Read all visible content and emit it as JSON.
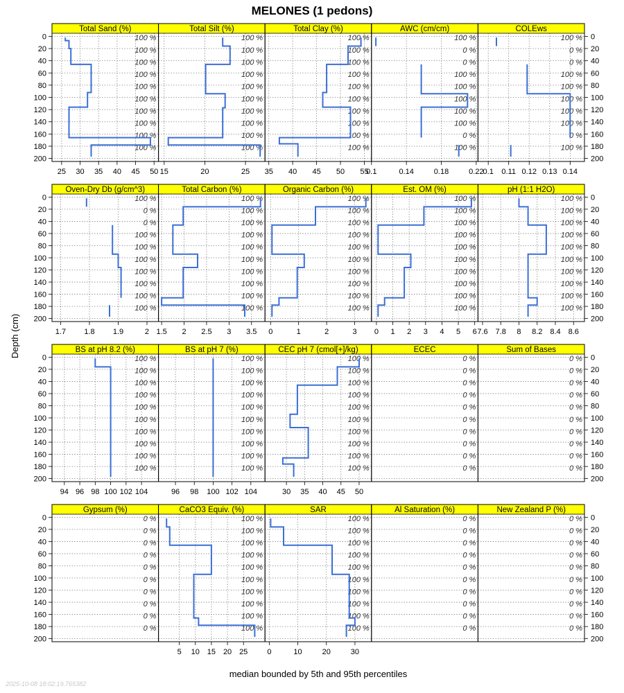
{
  "chart_data": {
    "type": "line",
    "title": "MELONES (1 pedons)",
    "xlabel": "median bounded by 5th and 95th percentiles",
    "ylabel": "Depth (cm)",
    "timestamp": "2025-10-08 18:02:19.765382",
    "y_ticks": [
      0,
      20,
      40,
      60,
      80,
      100,
      120,
      140,
      160,
      180,
      200
    ],
    "ylim": [
      205,
      -5
    ],
    "grid": true,
    "line_color": "#3b6fd6",
    "strip_color": "#ffff00",
    "panels": [
      {
        "name": "Total Sand (%)",
        "xlim": [
          22.4,
          51.2
        ],
        "x_ticks": [
          25,
          30,
          35,
          40,
          45,
          50
        ],
        "profile": [
          [
            26,
            2
          ],
          [
            26,
            7
          ],
          [
            27,
            7
          ],
          [
            27,
            20
          ],
          [
            27.5,
            20
          ],
          [
            27.5,
            46
          ],
          [
            33,
            46
          ],
          [
            33,
            92
          ],
          [
            32,
            92
          ],
          [
            32,
            116
          ],
          [
            27,
            116
          ],
          [
            27,
            166
          ],
          [
            49,
            166
          ],
          [
            49,
            178
          ],
          [
            33,
            178
          ],
          [
            33,
            197
          ]
        ],
        "pct_labels": [
          "100 %",
          "100 %",
          "100 %",
          "100 %",
          "100 %",
          "100 %",
          "100 %",
          "100 %",
          "100 %",
          "100 %"
        ]
      },
      {
        "name": "Total Silt (%)",
        "xlim": [
          14.3,
          27.4
        ],
        "x_ticks": [
          15,
          20,
          25
        ],
        "profile": [
          [
            22.2,
            2
          ],
          [
            22.2,
            16
          ],
          [
            23.1,
            16
          ],
          [
            23.1,
            46
          ],
          [
            20.1,
            46
          ],
          [
            20.1,
            94
          ],
          [
            22.5,
            94
          ],
          [
            22.5,
            117
          ],
          [
            22.2,
            117
          ],
          [
            22.2,
            166
          ],
          [
            15.5,
            166
          ],
          [
            15.5,
            178
          ],
          [
            26.8,
            178
          ],
          [
            26.8,
            197
          ]
        ],
        "pct_labels": [
          "100 %",
          "100 %",
          "100 %",
          "100 %",
          "100 %",
          "100 %",
          "100 %",
          "100 %",
          "100 %",
          "100 %"
        ]
      },
      {
        "name": "Total Clay (%)",
        "xlim": [
          34.2,
          56.5
        ],
        "x_ticks": [
          35,
          40,
          45,
          50,
          55
        ],
        "profile": [
          [
            54.3,
            2
          ],
          [
            54.3,
            16
          ],
          [
            51.6,
            16
          ],
          [
            51.6,
            46
          ],
          [
            47.1,
            46
          ],
          [
            47.1,
            92
          ],
          [
            46.3,
            92
          ],
          [
            46.3,
            116
          ],
          [
            52.1,
            116
          ],
          [
            52.1,
            166
          ],
          [
            37.2,
            166
          ],
          [
            37.2,
            176
          ],
          [
            41.1,
            176
          ],
          [
            41.1,
            197
          ]
        ],
        "pct_labels": [
          "100 %",
          "100 %",
          "100 %",
          "100 %",
          "100 %",
          "100 %",
          "100 %",
          "100 %",
          "100 %",
          "100 %"
        ]
      },
      {
        "name": "AWC (cm/cm)",
        "xlim": [
          0.1,
          0.222
        ],
        "x_ticks": [
          0.1,
          0.14,
          0.18,
          0.22
        ],
        "profile": [
          [
            0.105,
            2
          ],
          [
            0.105,
            16
          ],
          null,
          [
            0.157,
            46
          ],
          [
            0.157,
            94
          ],
          [
            0.21,
            94
          ],
          [
            0.21,
            116
          ],
          [
            0.157,
            116
          ],
          [
            0.157,
            166
          ],
          null,
          [
            0.2,
            178
          ],
          [
            0.2,
            197
          ]
        ],
        "pct_labels": [
          "100 %",
          "0 %",
          "0 %",
          "100 %",
          "100 %",
          "100 %",
          "100 %",
          "100 %",
          "0 %",
          "100 %"
        ]
      },
      {
        "name": "COLEws",
        "xlim": [
          0.095,
          0.147
        ],
        "x_ticks": [
          0.1,
          0.11,
          0.12,
          0.13,
          0.14
        ],
        "profile": [
          [
            0.104,
            2
          ],
          [
            0.104,
            16
          ],
          null,
          [
            0.119,
            46
          ],
          [
            0.119,
            94
          ],
          [
            0.14,
            94
          ],
          [
            0.14,
            166
          ],
          null,
          [
            0.111,
            178
          ],
          [
            0.111,
            197
          ]
        ],
        "pct_labels": [
          "100 %",
          "0 %",
          "0 %",
          "100 %",
          "100 %",
          "100 %",
          "100 %",
          "100 %",
          "0 %",
          "100 %"
        ]
      },
      {
        "name": "Oven-Dry Db (g/cm^3)",
        "xlim": [
          1.67,
          2.04
        ],
        "x_ticks": [
          1.7,
          1.8,
          1.9,
          2.0
        ],
        "profile": [
          [
            1.79,
            2
          ],
          [
            1.79,
            16
          ],
          null,
          [
            1.88,
            46
          ],
          [
            1.88,
            94
          ],
          [
            1.9,
            94
          ],
          [
            1.9,
            116
          ],
          [
            1.91,
            116
          ],
          [
            1.91,
            166
          ],
          null,
          [
            1.87,
            178
          ],
          [
            1.87,
            197
          ]
        ],
        "pct_labels": [
          "100 %",
          "0 %",
          "0 %",
          "100 %",
          "100 %",
          "100 %",
          "100 %",
          "100 %",
          "100 %",
          "100 %"
        ]
      },
      {
        "name": "Total Carbon (%)",
        "xlim": [
          1.43,
          3.8
        ],
        "x_ticks": [
          1.5,
          2.0,
          2.5,
          3.0,
          3.5
        ],
        "profile": [
          [
            3.7,
            2
          ],
          [
            3.7,
            16
          ],
          [
            1.98,
            16
          ],
          [
            1.98,
            46
          ],
          [
            1.75,
            46
          ],
          [
            1.75,
            94
          ],
          [
            2.3,
            94
          ],
          [
            2.3,
            116
          ],
          [
            1.98,
            116
          ],
          [
            1.98,
            166
          ],
          [
            1.5,
            166
          ],
          [
            1.5,
            178
          ],
          [
            3.35,
            178
          ],
          [
            3.35,
            197
          ]
        ],
        "pct_labels": [
          "100 %",
          "100 %",
          "100 %",
          "100 %",
          "100 %",
          "100 %",
          "100 %",
          "100 %",
          "100 %",
          "100 %"
        ]
      },
      {
        "name": "Organic Carbon (%)",
        "xlim": [
          -0.2,
          3.6
        ],
        "x_ticks": [
          0,
          1,
          2,
          3
        ],
        "profile": [
          [
            3.4,
            2
          ],
          [
            3.4,
            16
          ],
          [
            1.6,
            16
          ],
          [
            1.6,
            46
          ],
          [
            0.05,
            46
          ],
          [
            0.05,
            94
          ],
          [
            1.2,
            94
          ],
          [
            1.2,
            116
          ],
          [
            0.95,
            116
          ],
          [
            0.95,
            166
          ],
          [
            0.3,
            166
          ],
          [
            0.3,
            178
          ],
          [
            0.05,
            178
          ],
          [
            0.05,
            197
          ]
        ],
        "pct_labels": [
          "100 %",
          "100 %",
          "100 %",
          "100 %",
          "100 %",
          "100 %",
          "100 %",
          "100 %",
          "100 %",
          "100 %"
        ]
      },
      {
        "name": "Est. OM (%)",
        "xlim": [
          -0.3,
          6.2
        ],
        "x_ticks": [
          0,
          1,
          2,
          3,
          4,
          5,
          6
        ],
        "profile": [
          [
            5.8,
            2
          ],
          [
            5.8,
            16
          ],
          [
            2.9,
            16
          ],
          [
            2.9,
            46
          ],
          [
            0.1,
            46
          ],
          [
            0.1,
            94
          ],
          [
            2.1,
            94
          ],
          [
            2.1,
            116
          ],
          [
            1.7,
            116
          ],
          [
            1.7,
            166
          ],
          [
            0.5,
            166
          ],
          [
            0.5,
            178
          ],
          [
            0.1,
            178
          ],
          [
            0.1,
            197
          ]
        ],
        "pct_labels": [
          "100 %",
          "100 %",
          "100 %",
          "100 %",
          "100 %",
          "100 %",
          "100 %",
          "100 %",
          "100 %",
          "100 %"
        ]
      },
      {
        "name": "pH (1:1 H2O)",
        "xlim": [
          7.55,
          8.72
        ],
        "x_ticks": [
          7.6,
          7.8,
          8.0,
          8.2,
          8.4,
          8.6
        ],
        "profile": [
          [
            8.0,
            2
          ],
          [
            8.0,
            16
          ],
          [
            8.1,
            16
          ],
          [
            8.1,
            46
          ],
          [
            8.3,
            46
          ],
          [
            8.3,
            94
          ],
          [
            8.1,
            94
          ],
          [
            8.1,
            166
          ],
          [
            8.2,
            166
          ],
          [
            8.2,
            178
          ],
          [
            8.1,
            178
          ],
          [
            8.1,
            197
          ]
        ],
        "pct_labels": [
          "100 %",
          "100 %",
          "100 %",
          "100 %",
          "100 %",
          "100 %",
          "100 %",
          "100 %",
          "100 %",
          "100 %"
        ]
      },
      {
        "name": "BS at pH 8.2 (%)",
        "xlim": [
          92.4,
          106.2
        ],
        "x_ticks": [
          94,
          96,
          98,
          100,
          102,
          104
        ],
        "profile": [
          [
            98,
            2
          ],
          [
            98,
            16
          ],
          [
            100,
            16
          ],
          [
            100,
            197
          ]
        ],
        "pct_labels": [
          "100 %",
          "100 %",
          "100 %",
          "100 %",
          "100 %",
          "100 %",
          "100 %",
          "100 %",
          "100 %",
          "100 %"
        ]
      },
      {
        "name": "BS at pH 7 (%)",
        "xlim": [
          94.2,
          105.5
        ],
        "x_ticks": [
          96,
          98,
          100,
          102,
          104
        ],
        "profile": [
          [
            100,
            2
          ],
          [
            100,
            197
          ]
        ],
        "pct_labels": [
          "100 %",
          "100 %",
          "100 %",
          "100 %",
          "100 %",
          "100 %",
          "100 %",
          "100 %",
          "100 %",
          "100 %"
        ]
      },
      {
        "name": "CEC pH 7 (cmol[+]/kg)",
        "xlim": [
          24.1,
          53.4
        ],
        "x_ticks": [
          30,
          35,
          40,
          45,
          50
        ],
        "profile": [
          [
            50,
            2
          ],
          [
            50,
            16
          ],
          [
            44,
            16
          ],
          [
            44,
            46
          ],
          [
            33,
            46
          ],
          [
            33,
            94
          ],
          [
            31,
            94
          ],
          [
            31,
            116
          ],
          [
            36,
            116
          ],
          [
            36,
            166
          ],
          [
            29,
            166
          ],
          [
            29,
            176
          ],
          [
            32,
            176
          ],
          [
            32,
            197
          ]
        ],
        "pct_labels": [
          "100 %",
          "100 %",
          "100 %",
          "100 %",
          "100 %",
          "100 %",
          "100 %",
          "100 %",
          "100 %",
          "100 %"
        ]
      },
      {
        "name": "ECEC",
        "xlim": [
          0,
          1
        ],
        "x_ticks": [],
        "profile": [],
        "pct_labels": [
          "0 %",
          "0 %",
          "0 %",
          "0 %",
          "0 %",
          "0 %",
          "0 %",
          "0 %",
          "0 %",
          "0 %"
        ]
      },
      {
        "name": "Sum of Bases",
        "xlim": [
          0,
          1
        ],
        "x_ticks": [],
        "profile": [],
        "pct_labels": [
          "0 %",
          "0 %",
          "0 %",
          "0 %",
          "0 %",
          "0 %",
          "0 %",
          "0 %",
          "0 %",
          "0 %"
        ]
      },
      {
        "name": "Gypsum (%)",
        "xlim": [
          0,
          1
        ],
        "x_ticks": [],
        "profile": [],
        "pct_labels": [
          "0 %",
          "0 %",
          "0 %",
          "0 %",
          "0 %",
          "0 %",
          "0 %",
          "0 %",
          "0 %",
          "0 %"
        ]
      },
      {
        "name": "CaCO3 Equiv. (%)",
        "xlim": [
          -1.5,
          31.7
        ],
        "x_ticks": [
          5,
          10,
          15,
          20,
          25
        ],
        "profile": [
          [
            1,
            2
          ],
          [
            1,
            16
          ],
          [
            2,
            16
          ],
          [
            2,
            46
          ],
          [
            15,
            46
          ],
          [
            15,
            94
          ],
          [
            9.5,
            94
          ],
          [
            9.5,
            166
          ],
          [
            11,
            166
          ],
          [
            11,
            178
          ],
          [
            28.5,
            178
          ],
          [
            28.5,
            197
          ]
        ],
        "pct_labels": [
          "100 %",
          "100 %",
          "100 %",
          "100 %",
          "100 %",
          "100 %",
          "100 %",
          "100 %",
          "100 %",
          "100 %"
        ]
      },
      {
        "name": "SAR",
        "xlim": [
          -1.5,
          35.8
        ],
        "x_ticks": [
          0,
          10,
          20,
          30
        ],
        "profile": [
          [
            0.5,
            2
          ],
          [
            0.5,
            16
          ],
          [
            5,
            16
          ],
          [
            5,
            46
          ],
          [
            22,
            46
          ],
          [
            22,
            94
          ],
          [
            28,
            94
          ],
          [
            28,
            166
          ],
          [
            30,
            166
          ],
          [
            30,
            178
          ],
          [
            27,
            178
          ],
          [
            27,
            197
          ]
        ],
        "pct_labels": [
          "100 %",
          "100 %",
          "100 %",
          "100 %",
          "100 %",
          "100 %",
          "100 %",
          "100 %",
          "100 %",
          "100 %"
        ]
      },
      {
        "name": "Al Saturation (%)",
        "xlim": [
          0,
          1
        ],
        "x_ticks": [],
        "profile": [],
        "pct_labels": [
          "0 %",
          "0 %",
          "0 %",
          "0 %",
          "0 %",
          "0 %",
          "0 %",
          "0 %",
          "0 %",
          "0 %"
        ]
      },
      {
        "name": "New Zealand P (%)",
        "xlim": [
          0,
          1
        ],
        "x_ticks": [],
        "profile": [],
        "pct_labels": [
          "0 %",
          "0 %",
          "0 %",
          "0 %",
          "0 %",
          "0 %",
          "0 %",
          "0 %",
          "0 %",
          "0 %"
        ]
      }
    ]
  }
}
